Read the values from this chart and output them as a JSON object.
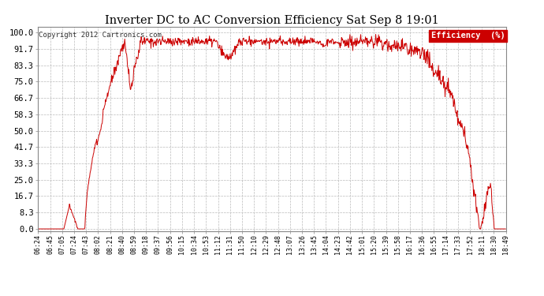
{
  "title": "Inverter DC to AC Conversion Efficiency Sat Sep 8 19:01",
  "copyright": "Copyright 2012 Cartronics.com",
  "legend_label": "Efficiency  (%)",
  "legend_bg": "#cc0000",
  "legend_fg": "#ffffff",
  "line_color": "#cc0000",
  "bg_color": "#ffffff",
  "grid_color": "#bbbbbb",
  "yticks": [
    0.0,
    8.3,
    16.7,
    25.0,
    33.3,
    41.7,
    50.0,
    58.3,
    66.7,
    75.0,
    83.3,
    91.7,
    100.0
  ],
  "ylim": [
    -1,
    103
  ],
  "xtick_labels": [
    "06:24",
    "06:45",
    "07:05",
    "07:24",
    "07:43",
    "08:02",
    "08:21",
    "08:40",
    "08:59",
    "09:18",
    "09:37",
    "09:56",
    "10:15",
    "10:34",
    "10:53",
    "11:12",
    "11:31",
    "11:50",
    "12:10",
    "12:29",
    "12:48",
    "13:07",
    "13:26",
    "13:45",
    "14:04",
    "14:23",
    "14:42",
    "15:01",
    "15:20",
    "15:39",
    "15:58",
    "16:17",
    "16:36",
    "16:55",
    "17:14",
    "17:33",
    "17:52",
    "18:11",
    "18:30",
    "18:49"
  ]
}
